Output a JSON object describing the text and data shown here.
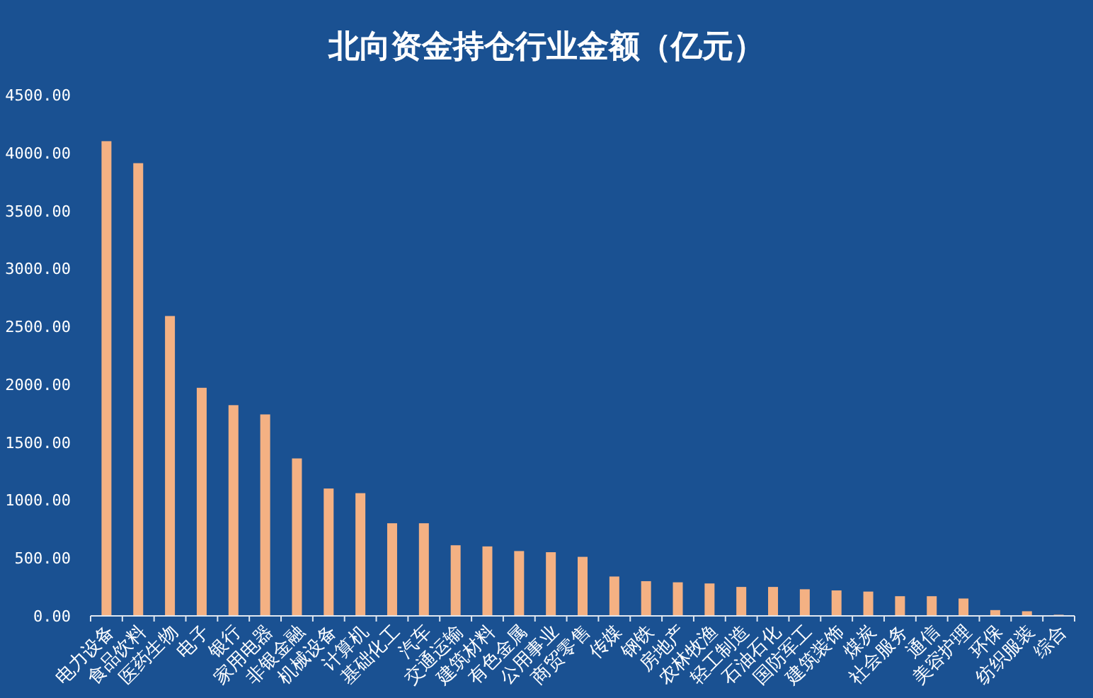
{
  "chart_data": {
    "type": "bar",
    "title": "北向资金持仓行业金额（亿元）",
    "categories": [
      "电力设备",
      "食品饮料",
      "医药生物",
      "电子",
      "银行",
      "家用电器",
      "非银金融",
      "机械设备",
      "计算机",
      "基础化工",
      "汽车",
      "交通运输",
      "建筑材料",
      "有色金属",
      "公用事业",
      "商贸零售",
      "传媒",
      "钢铁",
      "房地产",
      "农林牧渔",
      "轻工制造",
      "石油石化",
      "国防军工",
      "建筑装饰",
      "煤炭",
      "社会服务",
      "通信",
      "美容护理",
      "环保",
      "纺织服装",
      "综合"
    ],
    "values": [
      4100,
      3910,
      2590,
      1970,
      1820,
      1740,
      1360,
      1100,
      1060,
      800,
      800,
      610,
      600,
      560,
      550,
      510,
      340,
      300,
      290,
      280,
      250,
      250,
      230,
      220,
      210,
      170,
      170,
      150,
      50,
      40,
      10
    ],
    "color": "#f4b183",
    "ylim": [
      0,
      4500
    ],
    "yticks": [
      {
        "value": 0,
        "label": "0.00"
      },
      {
        "value": 500,
        "label": "500.00"
      },
      {
        "value": 1000,
        "label": "1000.00"
      },
      {
        "value": 1500,
        "label": "1500.00"
      },
      {
        "value": 2000,
        "label": "2000.00"
      },
      {
        "value": 2500,
        "label": "2500.00"
      },
      {
        "value": 3000,
        "label": "3000.00"
      },
      {
        "value": 3500,
        "label": "3500.00"
      },
      {
        "value": 4000,
        "label": "4000.00"
      },
      {
        "value": 4500,
        "label": "4500.00"
      }
    ],
    "grid": false
  }
}
